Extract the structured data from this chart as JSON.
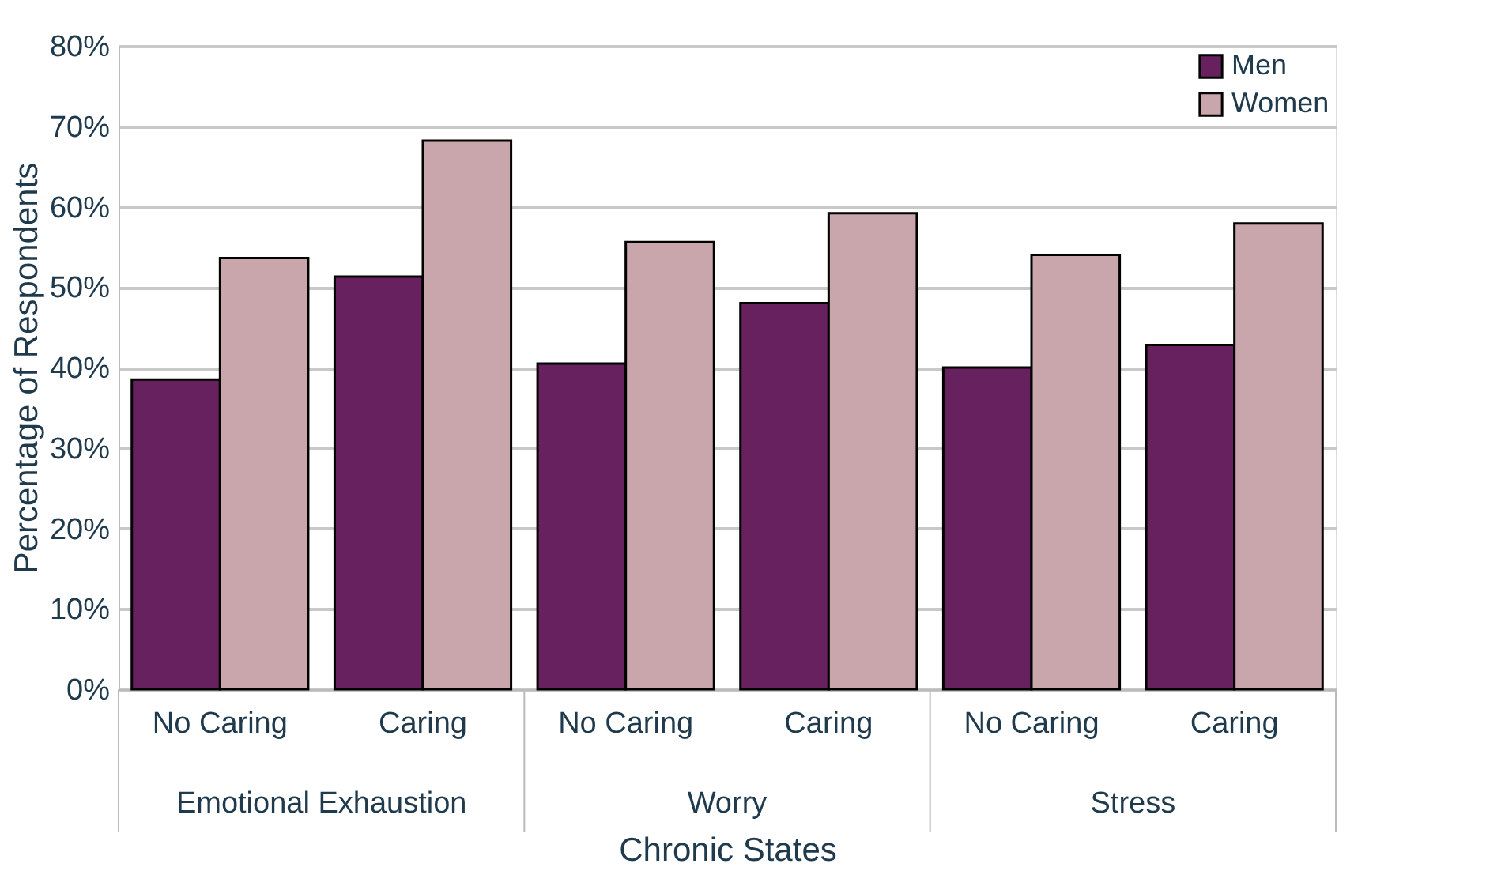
{
  "chart_data": {
    "type": "bar",
    "xlabel": "Chronic States",
    "ylabel": "Percentage of Respondents",
    "categories": [
      "No Caring",
      "Caring",
      "No Caring",
      "Caring",
      "No Caring",
      "Caring"
    ],
    "annotations": [
      "Emotional Exhaustion",
      "Worry",
      "Stress"
    ],
    "series": [
      {
        "name": "Men",
        "color": "#68215f",
        "values": [
          38.5,
          51.3,
          40.5,
          48.0,
          40.0,
          42.8
        ]
      },
      {
        "name": "Women",
        "color": "#c9a5ac",
        "values": [
          53.6,
          68.2,
          55.6,
          59.2,
          54.0,
          57.9
        ]
      }
    ],
    "ylim": [
      0,
      80
    ],
    "yticks": [
      {
        "value": 0,
        "label": "0%"
      },
      {
        "value": 10,
        "label": "10%"
      },
      {
        "value": 20,
        "label": "20%"
      },
      {
        "value": 30,
        "label": "30%"
      },
      {
        "value": 40,
        "label": "40%"
      },
      {
        "value": 50,
        "label": "50%"
      },
      {
        "value": 60,
        "label": "60%"
      },
      {
        "value": 70,
        "label": "70%"
      },
      {
        "value": 80,
        "label": "80%"
      }
    ],
    "grid": "y",
    "legend": "top right"
  }
}
